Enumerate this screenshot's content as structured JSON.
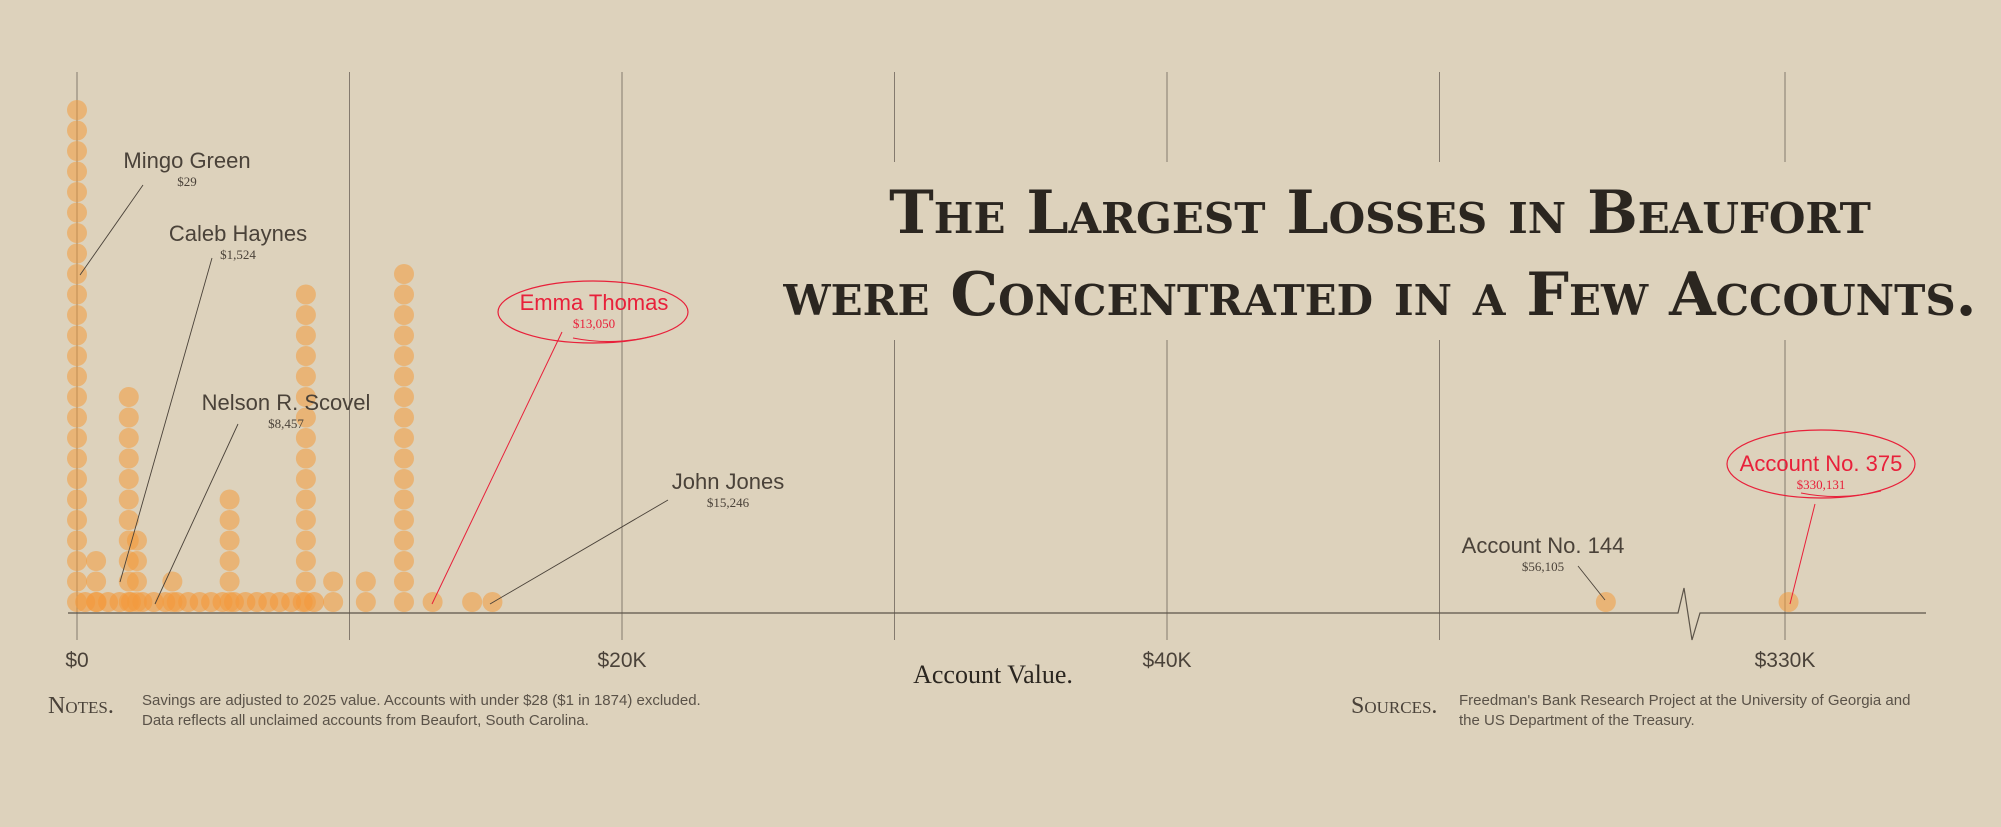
{
  "chart_data": {
    "type": "scatter",
    "title": [
      "The Largest Losses in Beaufort",
      "were Concentrated in a Few Accounts."
    ],
    "xlabel": "Account Value.",
    "ylabel": "",
    "xlim_main": [
      0,
      34000
    ],
    "xlim_broken": [
      324000,
      336000
    ],
    "axis_break_between": [
      29000,
      325000
    ],
    "grid": "vertical",
    "tick_labels": [
      {
        "value": 0,
        "label": "$0"
      },
      {
        "value": 20000,
        "label": "$20K"
      },
      {
        "value": 40000,
        "label": "$40K"
      },
      {
        "value": 330000,
        "label": "$330K"
      }
    ],
    "gridlines": [
      0,
      10000,
      20000,
      30000,
      40000,
      50000,
      330000
    ],
    "dot_unit": "account",
    "colors": {
      "dot": "#f39a3c",
      "highlight": "#e8203a",
      "background": "#ddd2bc",
      "ink": "#4a4239"
    },
    "stacks": [
      {
        "x": 0,
        "count": 25
      },
      {
        "x": 700,
        "count": 3
      },
      {
        "x": 1900,
        "count": 11
      },
      {
        "x": 2200,
        "count": 4
      },
      {
        "x": 3500,
        "count": 2
      },
      {
        "x": 5600,
        "count": 6
      },
      {
        "x": 8400,
        "count": 16
      },
      {
        "x": 9400,
        "count": 2
      },
      {
        "x": 10600,
        "count": 2
      },
      {
        "x": 12000,
        "count": 17
      },
      {
        "x": 13050,
        "count": 1
      },
      {
        "x": 14500,
        "count": 1
      },
      {
        "x": 15246,
        "count": 1
      },
      {
        "x": 56105,
        "count": 1
      },
      {
        "x": 330131,
        "count": 1
      }
    ],
    "annotations": [
      {
        "name": "Mingo Green",
        "value": "$29",
        "x": 29,
        "highlight": false
      },
      {
        "name": "Caleb Haynes",
        "value": "$1,524",
        "x": 1524,
        "highlight": false
      },
      {
        "name": "Nelson R. Scovel",
        "value": "$8,457",
        "x": 8457,
        "highlight": false
      },
      {
        "name": "Emma Thomas",
        "value": "$13,050",
        "x": 13050,
        "highlight": true
      },
      {
        "name": "John Jones",
        "value": "$15,246",
        "x": 15246,
        "highlight": false
      },
      {
        "name": "Account No. 144",
        "value": "$56,105",
        "x": 56105,
        "highlight": false
      },
      {
        "name": "Account No. 375",
        "value": "$330,131",
        "x": 330131,
        "highlight": true
      }
    ]
  },
  "notes": {
    "label": "Notes.",
    "line1": "Savings are adjusted to 2025 value. Accounts with under $28 ($1 in 1874) excluded.",
    "line2": "Data reflects all unclaimed accounts from Beaufort, South Carolina."
  },
  "sources": {
    "label": "Sources.",
    "line1": "Freedman's Bank Research Project at the University of Georgia and",
    "line2": "the US Department of the Treasury."
  }
}
